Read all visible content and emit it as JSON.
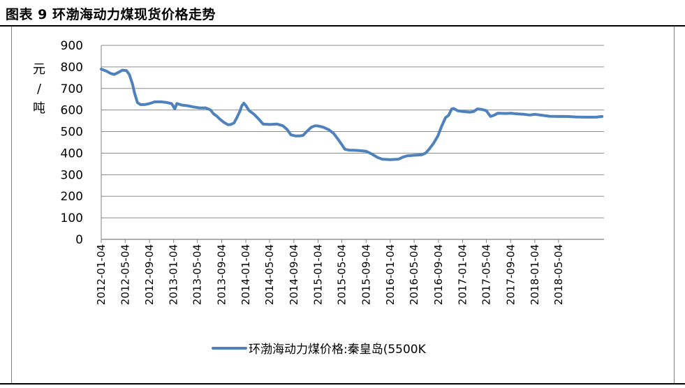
{
  "figure": {
    "title": "图表 9 环渤海动力煤现货价格走势"
  },
  "colors": {
    "series": "#4f81bd",
    "grid": "#8c8c8c",
    "axis": "#7f7f7f"
  },
  "chart_data": {
    "type": "line",
    "title": "",
    "xlabel": "",
    "ylabel": "元/吨",
    "ylabel_chars": [
      "元",
      "/",
      "吨"
    ],
    "ylim": [
      0,
      900
    ],
    "yticks": [
      0,
      100,
      200,
      300,
      400,
      500,
      600,
      700,
      800,
      900
    ],
    "grid": true,
    "legend": "bottom",
    "x_tick_labels": [
      "2012-01-04",
      "2012-05-04",
      "2012-09-04",
      "2013-01-04",
      "2013-05-04",
      "2013-09-04",
      "2014-01-04",
      "2014-05-04",
      "2014-09-04",
      "2015-01-04",
      "2015-05-04",
      "2015-09-04",
      "2016-01-04",
      "2016-05-04",
      "2016-09-04",
      "2017-01-04",
      "2017-05-04",
      "2017-09-04",
      "2018-01-04",
      "2018-05-04"
    ],
    "x_range": [
      "2012-01-04",
      "2018-12-20"
    ],
    "series": [
      {
        "name": "环渤海动力煤价格:秦皇岛(5500K",
        "points": [
          [
            "2012-01-04",
            790
          ],
          [
            "2012-02-01",
            780
          ],
          [
            "2012-02-20",
            770
          ],
          [
            "2012-03-10",
            765
          ],
          [
            "2012-04-01",
            775
          ],
          [
            "2012-04-20",
            785
          ],
          [
            "2012-05-10",
            783
          ],
          [
            "2012-05-25",
            765
          ],
          [
            "2012-06-10",
            720
          ],
          [
            "2012-06-20",
            680
          ],
          [
            "2012-07-05",
            635
          ],
          [
            "2012-07-20",
            625
          ],
          [
            "2012-08-10",
            625
          ],
          [
            "2012-09-04",
            630
          ],
          [
            "2012-10-01",
            638
          ],
          [
            "2012-11-01",
            638
          ],
          [
            "2012-12-01",
            635
          ],
          [
            "2012-12-25",
            630
          ],
          [
            "2013-01-10",
            605
          ],
          [
            "2013-01-20",
            630
          ],
          [
            "2013-02-15",
            623
          ],
          [
            "2013-03-15",
            620
          ],
          [
            "2013-04-15",
            614
          ],
          [
            "2013-05-15",
            610
          ],
          [
            "2013-06-15",
            610
          ],
          [
            "2013-07-10",
            600
          ],
          [
            "2013-07-25",
            582
          ],
          [
            "2013-08-10",
            572
          ],
          [
            "2013-08-25",
            558
          ],
          [
            "2013-09-15",
            543
          ],
          [
            "2013-10-05",
            532
          ],
          [
            "2013-10-20",
            533
          ],
          [
            "2013-11-05",
            540
          ],
          [
            "2013-11-20",
            565
          ],
          [
            "2013-12-05",
            595
          ],
          [
            "2013-12-15",
            620
          ],
          [
            "2013-12-25",
            632
          ],
          [
            "2014-01-05",
            620
          ],
          [
            "2014-01-20",
            598
          ],
          [
            "2014-02-15",
            580
          ],
          [
            "2014-03-10",
            558
          ],
          [
            "2014-04-01",
            535
          ],
          [
            "2014-05-04",
            533
          ],
          [
            "2014-06-10",
            535
          ],
          [
            "2014-07-10",
            527
          ],
          [
            "2014-08-01",
            510
          ],
          [
            "2014-08-20",
            485
          ],
          [
            "2014-09-10",
            480
          ],
          [
            "2014-10-01",
            480
          ],
          [
            "2014-10-20",
            482
          ],
          [
            "2014-11-10",
            502
          ],
          [
            "2014-12-01",
            520
          ],
          [
            "2014-12-20",
            527
          ],
          [
            "2015-01-04",
            526
          ],
          [
            "2015-02-01",
            520
          ],
          [
            "2015-03-01",
            508
          ],
          [
            "2015-03-25",
            490
          ],
          [
            "2015-04-15",
            465
          ],
          [
            "2015-05-04",
            440
          ],
          [
            "2015-05-20",
            418
          ],
          [
            "2015-06-10",
            414
          ],
          [
            "2015-07-10",
            413
          ],
          [
            "2015-08-10",
            411
          ],
          [
            "2015-09-04",
            409
          ],
          [
            "2015-10-01",
            397
          ],
          [
            "2015-11-01",
            380
          ],
          [
            "2015-11-25",
            372
          ],
          [
            "2016-01-04",
            370
          ],
          [
            "2016-02-15",
            372
          ],
          [
            "2016-03-10",
            382
          ],
          [
            "2016-04-01",
            388
          ],
          [
            "2016-05-04",
            390
          ],
          [
            "2016-06-10",
            392
          ],
          [
            "2016-07-01",
            400
          ],
          [
            "2016-07-20",
            420
          ],
          [
            "2016-08-10",
            445
          ],
          [
            "2016-09-01",
            480
          ],
          [
            "2016-09-20",
            525
          ],
          [
            "2016-10-10",
            565
          ],
          [
            "2016-10-25",
            575
          ],
          [
            "2016-11-10",
            605
          ],
          [
            "2016-11-20",
            607
          ],
          [
            "2016-12-10",
            597
          ],
          [
            "2017-01-04",
            593
          ],
          [
            "2017-02-10",
            590
          ],
          [
            "2017-03-01",
            593
          ],
          [
            "2017-03-20",
            605
          ],
          [
            "2017-04-10",
            603
          ],
          [
            "2017-05-04",
            597
          ],
          [
            "2017-05-25",
            570
          ],
          [
            "2017-06-10",
            575
          ],
          [
            "2017-07-01",
            585
          ],
          [
            "2017-08-10",
            584
          ],
          [
            "2017-09-04",
            585
          ],
          [
            "2017-10-10",
            582
          ],
          [
            "2017-11-10",
            580
          ],
          [
            "2017-12-10",
            577
          ],
          [
            "2018-01-04",
            580
          ],
          [
            "2018-02-15",
            575
          ],
          [
            "2018-03-20",
            571
          ],
          [
            "2018-05-04",
            570
          ],
          [
            "2018-06-15",
            570
          ],
          [
            "2018-08-01",
            568
          ],
          [
            "2018-09-15",
            567
          ],
          [
            "2018-11-10",
            567
          ],
          [
            "2018-12-10",
            570
          ]
        ]
      }
    ]
  }
}
